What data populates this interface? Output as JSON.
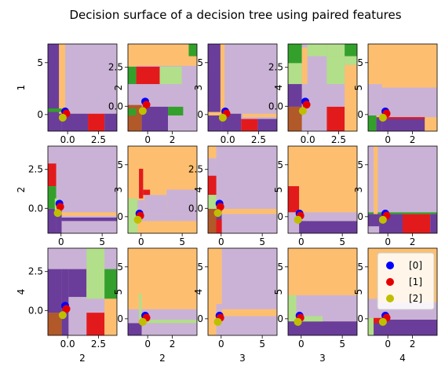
{
  "figure": {
    "title": "Decision surface of a decision tree using paired features"
  },
  "colors": {
    "purple": "#6a3d9a",
    "lavender": "#cab2d6",
    "orange": "#fdbf6f",
    "red": "#e31a1c",
    "green": "#33a02c",
    "lightgreen": "#b2df8a",
    "brown": "#b15928",
    "class0": "#0000ff",
    "class1": "#e50000",
    "class2": "#bfbf00"
  },
  "chart_data": {
    "type": "scatter",
    "grid": "3x5 subplots",
    "legend": {
      "placement": "lower-right subplot, upper-right",
      "entries": [
        "[0]",
        "[1]",
        "[2]"
      ]
    },
    "subplots": [
      {
        "row": 0,
        "col": 0,
        "xlabel": "",
        "ylabel": "1",
        "xlim": [
          -1.6,
          4.0
        ],
        "ylim": [
          -1.6,
          6.8
        ],
        "xticks": [
          0.0,
          2.5
        ],
        "yticks": [
          0,
          5
        ]
      },
      {
        "row": 0,
        "col": 1,
        "xlabel": "",
        "ylabel": "2",
        "xlim": [
          -1.6,
          4.0
        ],
        "ylim": [
          -1.6,
          4.0
        ],
        "xticks": [
          0,
          2
        ],
        "yticks": [
          0.0,
          2.5
        ]
      },
      {
        "row": 0,
        "col": 2,
        "xlabel": "",
        "ylabel": "3",
        "xlim": [
          -1.6,
          4.0
        ],
        "ylim": [
          -1.6,
          6.8
        ],
        "xticks": [
          0.0,
          2.5
        ],
        "yticks": [
          0,
          5
        ]
      },
      {
        "row": 0,
        "col": 3,
        "xlabel": "",
        "ylabel": "4",
        "xlim": [
          -1.6,
          4.0
        ],
        "ylim": [
          -1.6,
          4.0
        ],
        "xticks": [
          0.0,
          2.5
        ],
        "yticks": [
          0.0,
          2.5
        ]
      },
      {
        "row": 0,
        "col": 4,
        "xlabel": "",
        "ylabel": "5",
        "xlim": [
          -1.6,
          4.0
        ],
        "ylim": [
          -1.6,
          6.8
        ],
        "xticks": [
          0,
          2
        ],
        "yticks": [
          0,
          5
        ]
      },
      {
        "row": 1,
        "col": 0,
        "xlabel": "",
        "ylabel": "2",
        "xlim": [
          -1.6,
          6.8
        ],
        "ylim": [
          -1.6,
          4.0
        ],
        "xticks": [
          0,
          5
        ],
        "yticks": [
          0.0,
          2.5
        ]
      },
      {
        "row": 1,
        "col": 1,
        "xlabel": "",
        "ylabel": "3",
        "xlim": [
          -1.6,
          6.8
        ],
        "ylim": [
          -1.6,
          6.8
        ],
        "xticks": [
          0,
          5
        ],
        "yticks": [
          0,
          5
        ]
      },
      {
        "row": 1,
        "col": 2,
        "xlabel": "",
        "ylabel": "4",
        "xlim": [
          -1.6,
          6.8
        ],
        "ylim": [
          -1.6,
          4.0
        ],
        "xticks": [
          0,
          5
        ],
        "yticks": [
          0.0,
          2.5
        ]
      },
      {
        "row": 1,
        "col": 3,
        "xlabel": "",
        "ylabel": "5",
        "xlim": [
          -1.6,
          6.8
        ],
        "ylim": [
          -1.6,
          6.8
        ],
        "xticks": [
          0,
          5
        ],
        "yticks": [
          0,
          5
        ]
      },
      {
        "row": 1,
        "col": 4,
        "xlabel": "",
        "ylabel": "3",
        "xlim": [
          -1.6,
          4.0
        ],
        "ylim": [
          -1.6,
          6.8
        ],
        "xticks": [
          0,
          2
        ],
        "yticks": [
          0,
          5
        ]
      },
      {
        "row": 2,
        "col": 0,
        "xlabel": "2",
        "ylabel": "4",
        "xlim": [
          -1.6,
          4.0
        ],
        "ylim": [
          -1.6,
          4.0
        ],
        "xticks": [
          0.0,
          2.5
        ],
        "yticks": [
          0.0,
          2.5
        ]
      },
      {
        "row": 2,
        "col": 1,
        "xlabel": "2",
        "ylabel": "5",
        "xlim": [
          -1.6,
          4.0
        ],
        "ylim": [
          -1.6,
          6.8
        ],
        "xticks": [
          0,
          2
        ],
        "yticks": [
          0,
          5
        ]
      },
      {
        "row": 2,
        "col": 2,
        "xlabel": "3",
        "ylabel": "4",
        "xlim": [
          -1.6,
          6.8
        ],
        "ylim": [
          -1.6,
          6.8
        ],
        "xticks": [
          0,
          5
        ],
        "yticks": [
          0,
          5
        ]
      },
      {
        "row": 2,
        "col": 3,
        "xlabel": "3",
        "ylabel": "5",
        "xlim": [
          -1.6,
          6.8
        ],
        "ylim": [
          -1.6,
          6.8
        ],
        "xticks": [
          0,
          5
        ],
        "yticks": [
          0,
          5
        ]
      },
      {
        "row": 2,
        "col": 4,
        "xlabel": "4",
        "ylabel": "5",
        "xlim": [
          -1.6,
          4.0
        ],
        "ylim": [
          -1.6,
          6.8
        ],
        "xticks": [
          0,
          2
        ],
        "yticks": [
          0,
          5
        ]
      }
    ],
    "points": {
      "class0": {
        "label": "[0]",
        "x": -0.2,
        "y": 0.3
      },
      "class1": {
        "label": "[1]",
        "x": -0.1,
        "y": 0.1
      },
      "class2": {
        "label": "[2]",
        "x": -0.4,
        "y": -0.3
      }
    }
  }
}
